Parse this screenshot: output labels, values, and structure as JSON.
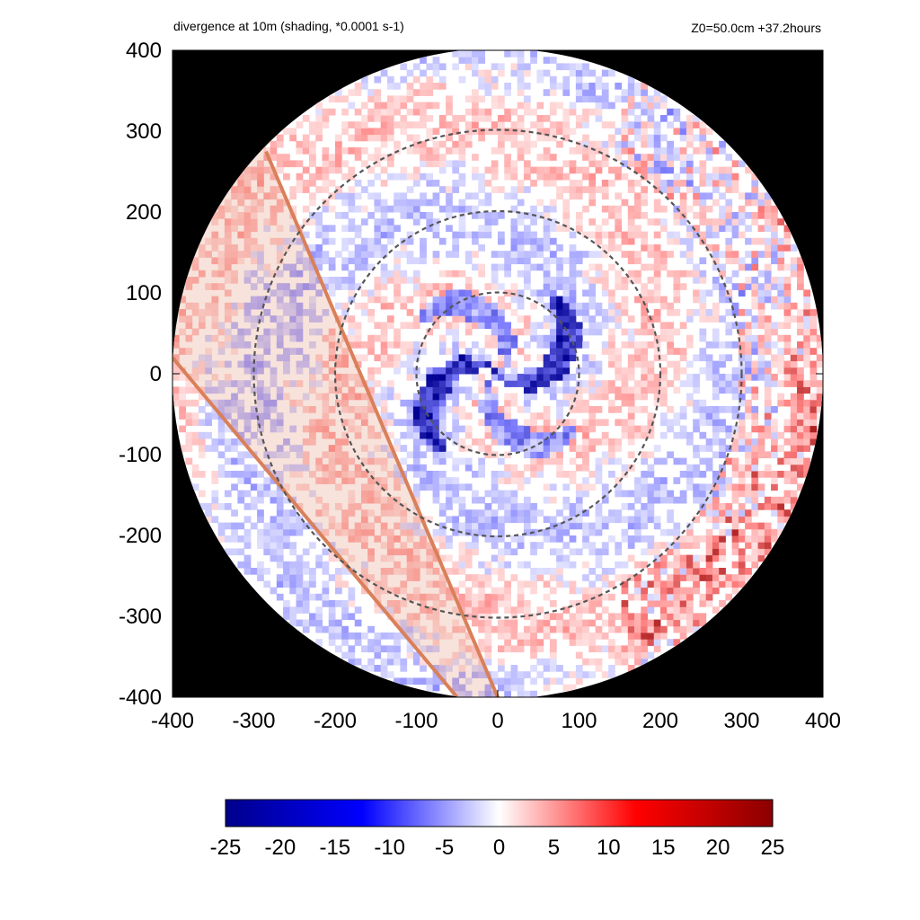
{
  "chart_data": {
    "type": "heatmap",
    "title": "divergence at 10m (shading, *0.0001 s-1)",
    "annotation": "Z0=50.0cm  +37.2hours",
    "xlim": [
      -400,
      400
    ],
    "ylim": [
      -400,
      400
    ],
    "x_ticks": [
      "-400",
      "-300",
      "-200",
      "-100",
      "0",
      "100",
      "200",
      "300",
      "400"
    ],
    "y_ticks": [
      "400",
      "300",
      "200",
      "100",
      "0",
      "-100",
      "-200",
      "-300",
      "-400"
    ],
    "x_tick_values": [
      -400,
      -300,
      -200,
      -100,
      0,
      100,
      200,
      300,
      400
    ],
    "y_tick_values": [
      400,
      300,
      200,
      100,
      0,
      -100,
      -200,
      -300,
      -400
    ],
    "domain_radius": 400,
    "range_rings": [
      100,
      200,
      300
    ],
    "colorbar": {
      "range": [
        -25,
        25
      ],
      "ticks": [
        "-25",
        "-20",
        "-15",
        "-10",
        "-5",
        "0",
        "5",
        "10",
        "15",
        "20",
        "25"
      ],
      "tick_values": [
        -25,
        -20,
        -15,
        -10,
        -5,
        0,
        5,
        10,
        15,
        20,
        25
      ],
      "colors": [
        "#00008b",
        "#0000ff",
        "#ffffff",
        "#ff0000",
        "#8b0000"
      ]
    },
    "masked_region": {
      "lines": [
        [
          [
            -400,
            20
          ],
          [
            -50,
            -400
          ]
        ],
        [
          [
            -285,
            275
          ],
          [
            0,
            -400
          ]
        ]
      ],
      "color": "#d9805a"
    },
    "colors": {
      "background": "#000000",
      "ring": "#555555",
      "convergence": "#0000cc",
      "divergence": "#ff0000"
    }
  }
}
